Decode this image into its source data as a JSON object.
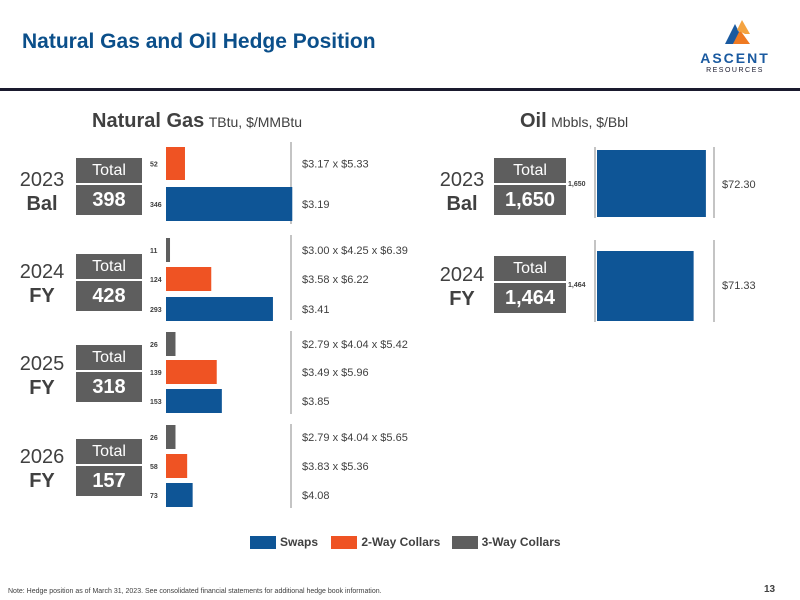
{
  "slide": {
    "title": "Natural Gas and Oil Hedge Position",
    "logo_word": "ASCENT",
    "logo_sub": "RESOURCES",
    "footnote": "Note: Hedge position as of March 31, 2023. See consolidated financial statements for additional hedge book information.",
    "page_number": "13"
  },
  "colors": {
    "swaps": "#0e5596",
    "two_way": "#ef5323",
    "three_way": "#5e5e5e",
    "title": "#0b4f8a"
  },
  "legend": [
    {
      "label": "Swaps",
      "color": "#0e5596"
    },
    {
      "label": "2-Way Collars",
      "color": "#ef5323"
    },
    {
      "label": "3-Way Collars",
      "color": "#5e5e5e"
    }
  ],
  "chart_data": [
    {
      "type": "bar",
      "title": "Natural Gas",
      "subtitle": "TBtu, $/MMBtu",
      "groups": [
        {
          "year": "2023",
          "period": "Bal",
          "total_label": "Total",
          "total": "398",
          "bars": [
            {
              "series": "2-Way Collars",
              "value": 52,
              "value_label": "52",
              "price": "$3.17 x $5.33"
            },
            {
              "series": "Swaps",
              "value": 346,
              "value_label": "346",
              "price": "$3.19"
            }
          ]
        },
        {
          "year": "2024",
          "period": "FY",
          "total_label": "Total",
          "total": "428",
          "bars": [
            {
              "series": "3-Way Collars",
              "value": 11,
              "value_label": "11",
              "price": "$3.00 x $4.25 x $6.39"
            },
            {
              "series": "2-Way Collars",
              "value": 124,
              "value_label": "124",
              "price": "$3.58 x $6.22"
            },
            {
              "series": "Swaps",
              "value": 293,
              "value_label": "293",
              "price": "$3.41"
            }
          ]
        },
        {
          "year": "2025",
          "period": "FY",
          "total_label": "Total",
          "total": "318",
          "bars": [
            {
              "series": "3-Way Collars",
              "value": 26,
              "value_label": "26",
              "price": "$2.79 x $4.04 x $5.42"
            },
            {
              "series": "2-Way Collars",
              "value": 139,
              "value_label": "139",
              "price": "$3.49 x $5.96"
            },
            {
              "series": "Swaps",
              "value": 153,
              "value_label": "153",
              "price": "$3.85"
            }
          ]
        },
        {
          "year": "2026",
          "period": "FY",
          "total_label": "Total",
          "total": "157",
          "bars": [
            {
              "series": "3-Way Collars",
              "value": 26,
              "value_label": "26",
              "price": "$2.79 x $4.04 x $5.65"
            },
            {
              "series": "2-Way Collars",
              "value": 58,
              "value_label": "58",
              "price": "$3.83 x $5.36"
            },
            {
              "series": "Swaps",
              "value": 73,
              "value_label": "73",
              "price": "$4.08"
            }
          ]
        }
      ]
    },
    {
      "type": "bar",
      "title": "Oil",
      "subtitle": "Mbbls, $/Bbl",
      "groups": [
        {
          "year": "2023",
          "period": "Bal",
          "total_label": "Total",
          "total": "1,650",
          "bars": [
            {
              "series": "Swaps",
              "value": 1650,
              "value_label": "1,650",
              "price": "$72.30"
            }
          ]
        },
        {
          "year": "2024",
          "period": "FY",
          "total_label": "Total",
          "total": "1,464",
          "bars": [
            {
              "series": "Swaps",
              "value": 1464,
              "value_label": "1,464",
              "price": "$71.33"
            }
          ]
        }
      ]
    }
  ]
}
